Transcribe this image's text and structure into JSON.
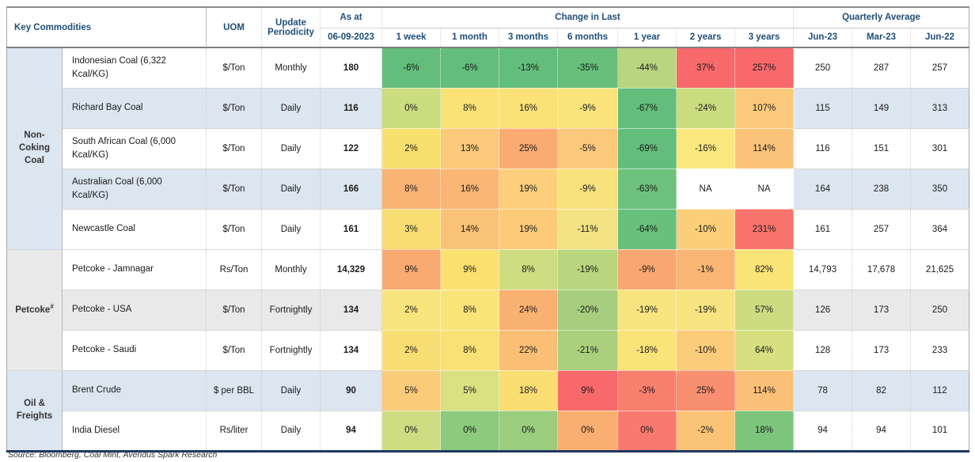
{
  "header": {
    "key_commodities": "Key Commodities",
    "uom": "UOM",
    "update_periodicity": "Update Periodicity",
    "as_at": "As at",
    "as_at_date": "06-09-2023",
    "change_in_last": "Change in Last",
    "change_cols": [
      "1 week",
      "1 month",
      "3 months",
      "6 months",
      "1 year",
      "2 years",
      "3 years"
    ],
    "quarterly_average": "Quarterly Average",
    "quarterly_cols": [
      "Jun-23",
      "Mar-23",
      "Jun-22"
    ]
  },
  "colors": {
    "header_text": "#1F4E79",
    "row_alt_blue": "#DCE6F1",
    "row_alt_grey": "#E9E9E9",
    "heat_green": "#63BE7B",
    "heat_yellow": "#FFEB84",
    "heat_red": "#F8696B",
    "border_dark": "#1F3864"
  },
  "chart_data": {
    "type": "table",
    "title": "Key Commodities heatmap: change over time and quarterly averages",
    "columns": [
      "Key Commodities",
      "UOM",
      "Update Periodicity",
      "As at 06-09-2023",
      "1 week",
      "1 month",
      "3 months",
      "6 months",
      "1 year",
      "2 years",
      "3 years",
      "Jun-23",
      "Mar-23",
      "Jun-22"
    ],
    "groups": [
      {
        "id": "non-coking-coal",
        "label": "Non-Coking Coal",
        "sup": "",
        "bg": "#DCE6F1",
        "rows": [
          {
            "name": "Indonesian Coal (6,322 Kcal/KG)",
            "uom": "$/Ton",
            "periodicity": "Monthly",
            "as_at": "180",
            "bg": "#FFFFFF",
            "changes": [
              {
                "v": "-6%",
                "bg": "#63BE7B"
              },
              {
                "v": "-6%",
                "bg": "#63BE7B"
              },
              {
                "v": "-13%",
                "bg": "#63BE7B"
              },
              {
                "v": "-35%",
                "bg": "#67BF7B"
              },
              {
                "v": "-44%",
                "bg": "#B9D57F"
              },
              {
                "v": "37%",
                "bg": "#F8696B"
              },
              {
                "v": "257%",
                "bg": "#F8696B"
              }
            ],
            "quarterly": [
              "250",
              "287",
              "257"
            ]
          },
          {
            "name": "Richard Bay Coal",
            "uom": "$/Ton",
            "periodicity": "Daily",
            "as_at": "116",
            "bg": "#DCE6F1",
            "changes": [
              {
                "v": "0%",
                "bg": "#CCDC81"
              },
              {
                "v": "8%",
                "bg": "#FBE277"
              },
              {
                "v": "16%",
                "bg": "#FBE278"
              },
              {
                "v": "-9%",
                "bg": "#FBE47C"
              },
              {
                "v": "-67%",
                "bg": "#63BE7B"
              },
              {
                "v": "-24%",
                "bg": "#CBDB80"
              },
              {
                "v": "107%",
                "bg": "#FBC97B"
              }
            ],
            "quarterly": [
              "115",
              "149",
              "313"
            ]
          },
          {
            "name": "South African Coal (6,000 Kcal/KG)",
            "uom": "$/Ton",
            "periodicity": "Daily",
            "as_at": "122",
            "bg": "#FFFFFF",
            "changes": [
              {
                "v": "2%",
                "bg": "#F8E06E"
              },
              {
                "v": "13%",
                "bg": "#FBC97A"
              },
              {
                "v": "25%",
                "bg": "#F9AB71"
              },
              {
                "v": "-5%",
                "bg": "#FBC97C"
              },
              {
                "v": "-69%",
                "bg": "#63BE7B"
              },
              {
                "v": "-16%",
                "bg": "#FAE77E"
              },
              {
                "v": "114%",
                "bg": "#FBC379"
              }
            ],
            "quarterly": [
              "116",
              "151",
              "301"
            ]
          },
          {
            "name": "Australian Coal (6,000 Kcal/KG)",
            "uom": "$/Ton",
            "periodicity": "Daily",
            "as_at": "166",
            "bg": "#DCE6F1",
            "changes": [
              {
                "v": "8%",
                "bg": "#F9B375"
              },
              {
                "v": "16%",
                "bg": "#F9B674"
              },
              {
                "v": "19%",
                "bg": "#FBCF7B"
              },
              {
                "v": "-9%",
                "bg": "#F8E27C"
              },
              {
                "v": "-63%",
                "bg": "#6EC17C"
              },
              {
                "v": "NA",
                "bg": "#FFFFFF"
              },
              {
                "v": "NA",
                "bg": "#FFFFFF"
              }
            ],
            "quarterly": [
              "164",
              "238",
              "350"
            ]
          },
          {
            "name": "Newcastle Coal",
            "uom": "$/Ton",
            "periodicity": "Daily",
            "as_at": "161",
            "bg": "#FFFFFF",
            "changes": [
              {
                "v": "3%",
                "bg": "#F9DD72"
              },
              {
                "v": "14%",
                "bg": "#FAC276"
              },
              {
                "v": "19%",
                "bg": "#FBCB79"
              },
              {
                "v": "-11%",
                "bg": "#F2E283"
              },
              {
                "v": "-64%",
                "bg": "#68C07C"
              },
              {
                "v": "-10%",
                "bg": "#FBCE7A"
              },
              {
                "v": "231%",
                "bg": "#F8736C"
              }
            ],
            "quarterly": [
              "161",
              "257",
              "364"
            ]
          }
        ]
      },
      {
        "id": "petcoke",
        "label": "Petcoke",
        "sup": "#",
        "bg": "#E9E9E9",
        "rows": [
          {
            "name": "Petcoke - Jamnagar",
            "uom": "Rs/Ton",
            "periodicity": "Monthly",
            "as_at": "14,329",
            "bg": "#FFFFFF",
            "changes": [
              {
                "v": "9%",
                "bg": "#F8AB71"
              },
              {
                "v": "9%",
                "bg": "#FAE06F"
              },
              {
                "v": "8%",
                "bg": "#CFDD82"
              },
              {
                "v": "-19%",
                "bg": "#B9D67F"
              },
              {
                "v": "-9%",
                "bg": "#F8A770"
              },
              {
                "v": "-1%",
                "bg": "#F9B573"
              },
              {
                "v": "82%",
                "bg": "#FAE377"
              }
            ],
            "quarterly": [
              "14,793",
              "17,678",
              "21,625"
            ]
          },
          {
            "name": "Petcoke - USA",
            "uom": "$/Ton",
            "periodicity": "Fortnightly",
            "as_at": "134",
            "bg": "#E9E9E9",
            "changes": [
              {
                "v": "2%",
                "bg": "#F9E57D"
              },
              {
                "v": "8%",
                "bg": "#FAE47A"
              },
              {
                "v": "24%",
                "bg": "#F9B171"
              },
              {
                "v": "-20%",
                "bg": "#A7CE7E"
              },
              {
                "v": "-19%",
                "bg": "#F8E580"
              },
              {
                "v": "-19%",
                "bg": "#F7E481"
              },
              {
                "v": "57%",
                "bg": "#CDDC81"
              }
            ],
            "quarterly": [
              "126",
              "173",
              "250"
            ]
          },
          {
            "name": "Petcoke - Saudi",
            "uom": "$/Ton",
            "periodicity": "Fortnightly",
            "as_at": "134",
            "bg": "#FFFFFF",
            "changes": [
              {
                "v": "2%",
                "bg": "#F9DF73"
              },
              {
                "v": "8%",
                "bg": "#FAE175"
              },
              {
                "v": "22%",
                "bg": "#FABF75"
              },
              {
                "v": "-21%",
                "bg": "#AAD07E"
              },
              {
                "v": "-18%",
                "bg": "#FAE379"
              },
              {
                "v": "-10%",
                "bg": "#FBCC7A"
              },
              {
                "v": "64%",
                "bg": "#D6E080"
              }
            ],
            "quarterly": [
              "128",
              "173",
              "233"
            ]
          }
        ]
      },
      {
        "id": "oil-freights",
        "label": "Oil & Freights",
        "sup": "",
        "bg": "#DCE6F1",
        "rows": [
          {
            "name": "Brent Crude",
            "uom": "$ per BBL",
            "periodicity": "Daily",
            "as_at": "90",
            "bg": "#DCE6F1",
            "changes": [
              {
                "v": "5%",
                "bg": "#FACB79"
              },
              {
                "v": "5%",
                "bg": "#D9E181"
              },
              {
                "v": "18%",
                "bg": "#FADE74"
              },
              {
                "v": "9%",
                "bg": "#F8696B"
              },
              {
                "v": "-3%",
                "bg": "#F87F6E"
              },
              {
                "v": "25%",
                "bg": "#F88F70"
              },
              {
                "v": "114%",
                "bg": "#FAC077"
              }
            ],
            "quarterly": [
              "78",
              "82",
              "112"
            ]
          },
          {
            "name": "India Diesel",
            "uom": "Rs/liter",
            "periodicity": "Daily",
            "as_at": "94",
            "bg": "#FFFFFF",
            "changes": [
              {
                "v": "0%",
                "bg": "#CEDD82"
              },
              {
                "v": "0%",
                "bg": "#8CCA7D"
              },
              {
                "v": "0%",
                "bg": "#9BCD7E"
              },
              {
                "v": "0%",
                "bg": "#F9AE72"
              },
              {
                "v": "0%",
                "bg": "#F87A6E"
              },
              {
                "v": "-2%",
                "bg": "#FAC376"
              },
              {
                "v": "18%",
                "bg": "#7DC57D"
              }
            ],
            "quarterly": [
              "94",
              "94",
              "101"
            ]
          }
        ]
      }
    ]
  },
  "source_note": "Source: Bloomberg, Coal Mint, Avendus Spark Research"
}
